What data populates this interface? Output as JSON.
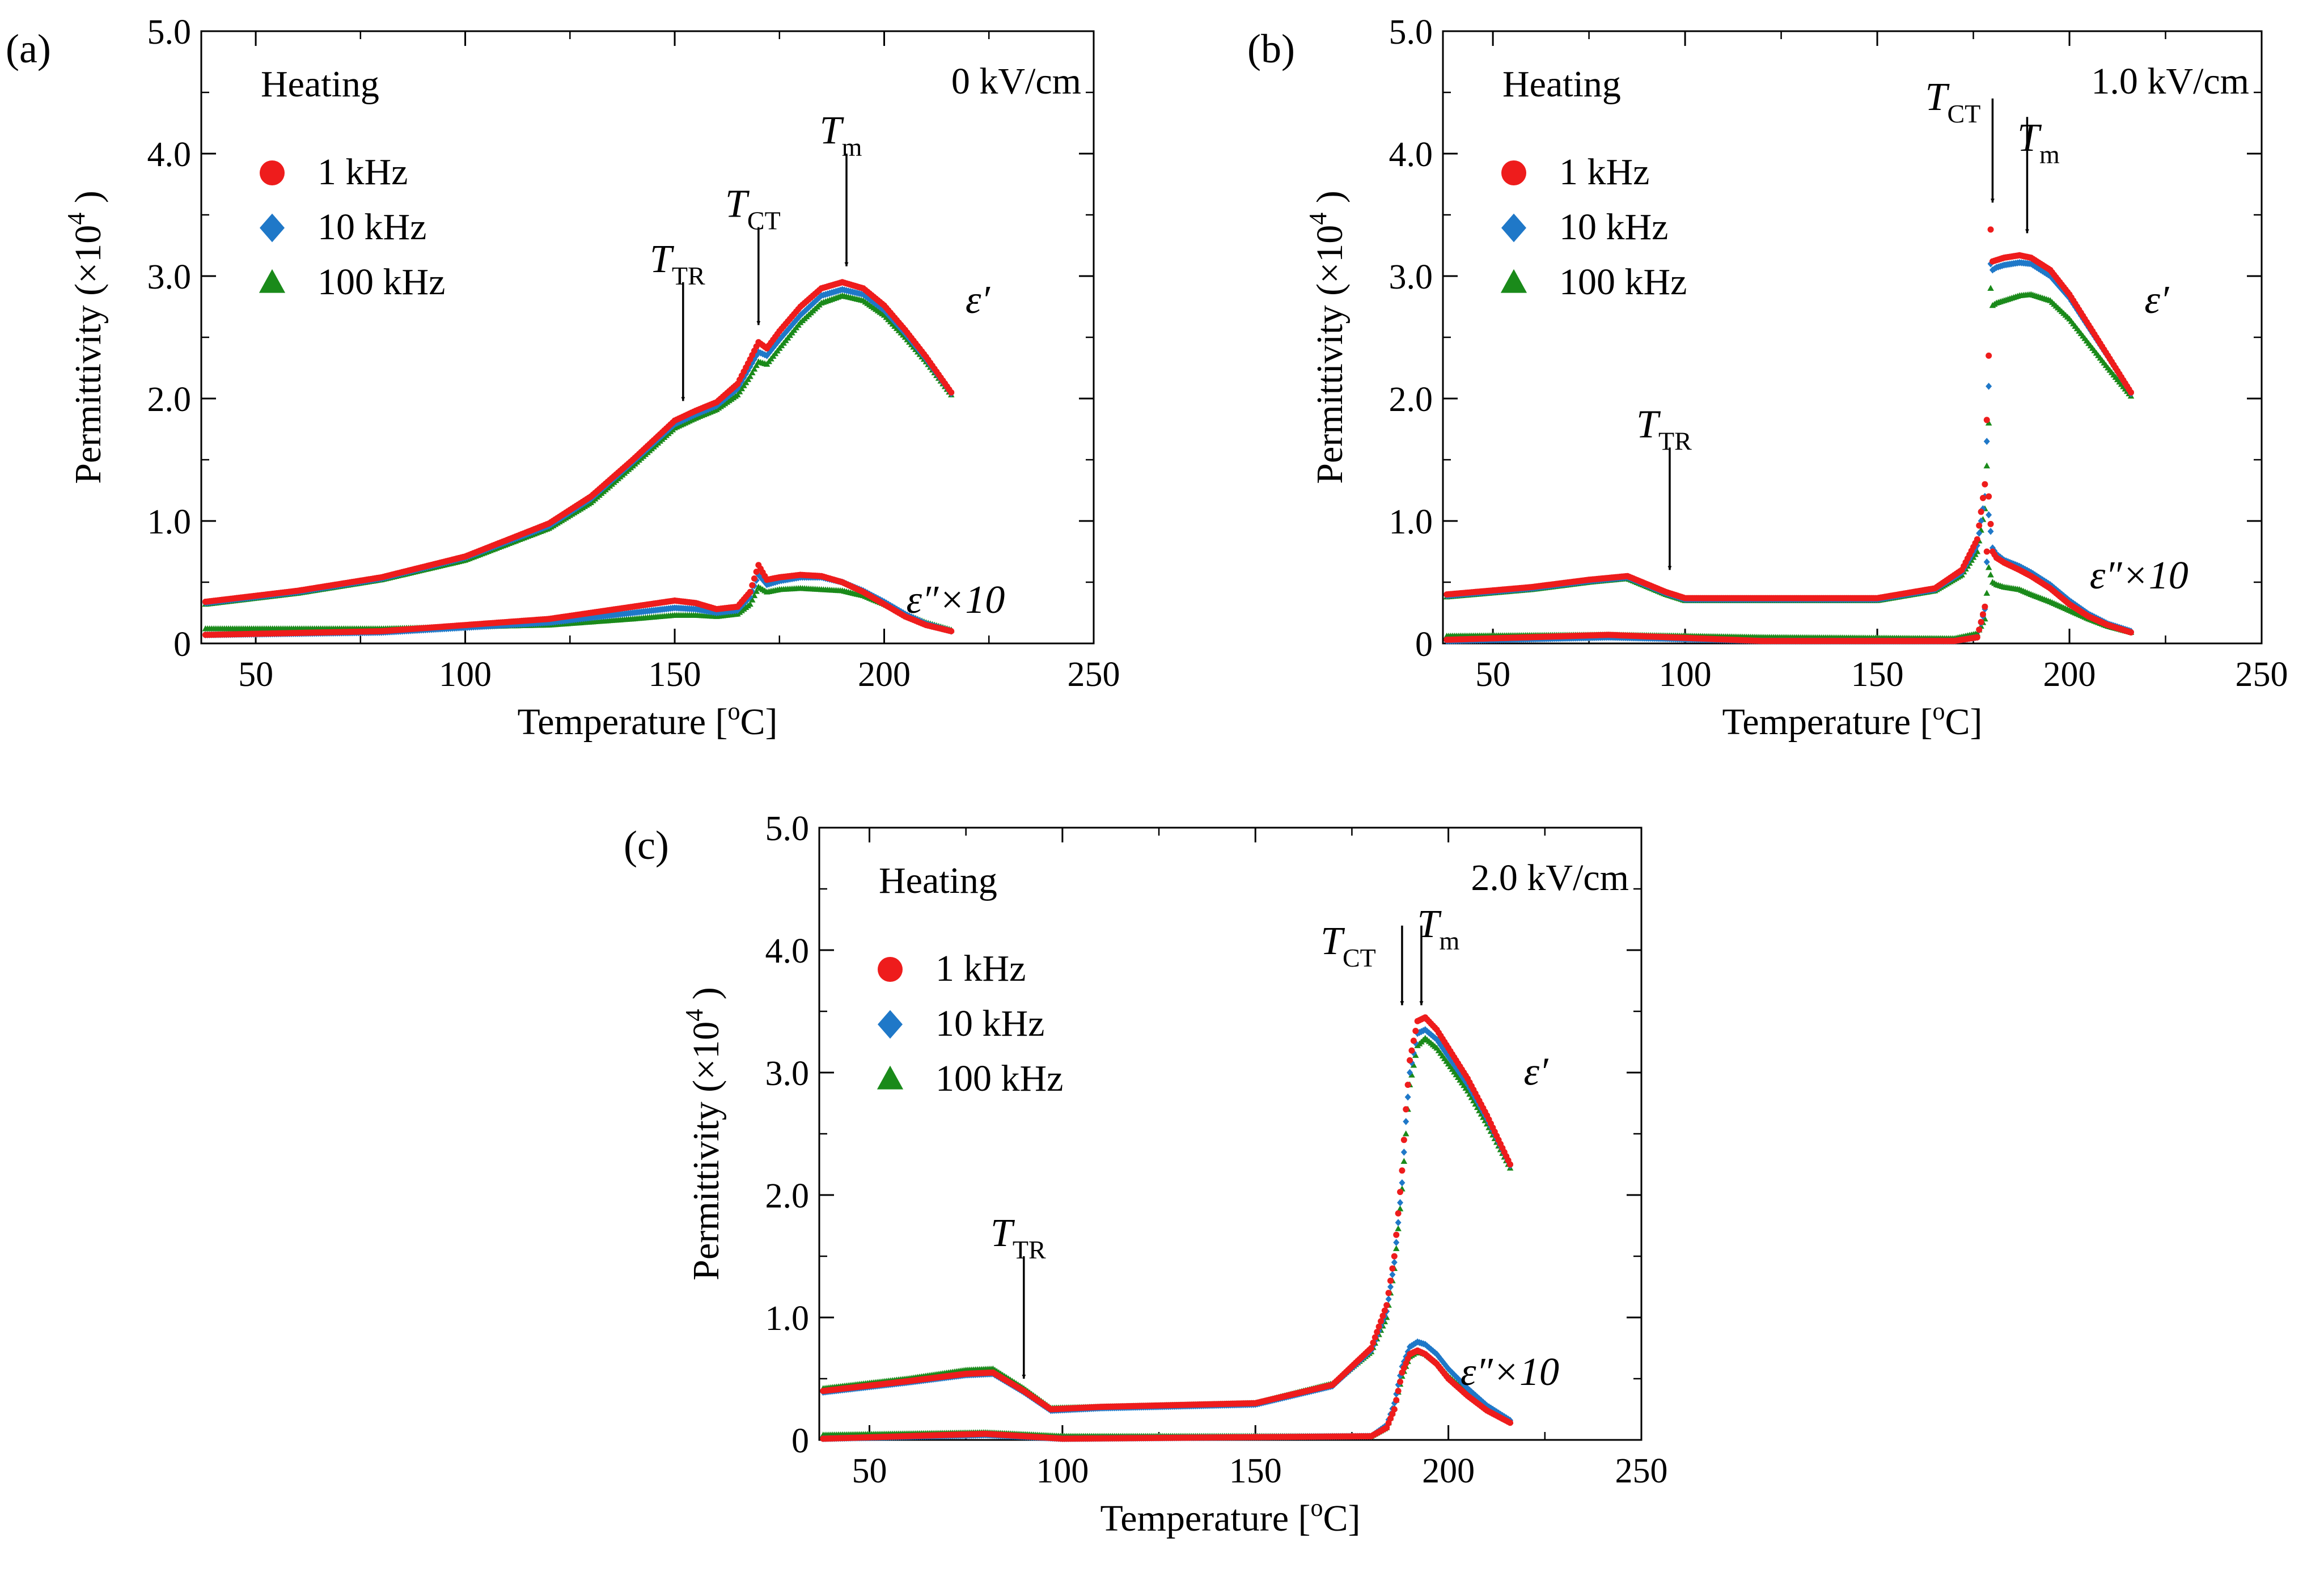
{
  "figure": {
    "axis_label_x_main": "Temperature [",
    "axis_label_x_unit_sup": "o",
    "axis_label_x_unit": "C]",
    "axis_label_y_main": "Permittivity (×10",
    "axis_label_y_sup": "4",
    "axis_label_y_end": ")",
    "heating_label": "Heating",
    "eps_prime_label": "ε′",
    "eps_double_label": "ε″×10",
    "legend": [
      {
        "label": "1 kHz",
        "color": "#ee1c1c",
        "marker": "circle"
      },
      {
        "label": "10 kHz",
        "color": "#1f78c8",
        "marker": "diamond"
      },
      {
        "label": "100 kHz",
        "color": "#1a8a1a",
        "marker": "triangle"
      }
    ]
  },
  "chart_data": [
    {
      "type": "scatter",
      "panel_label": "(a)",
      "field": "0 kV/cm",
      "xlim": [
        37,
        250
      ],
      "ylim": [
        0,
        5.0
      ],
      "x_ticks": [
        "50",
        "100",
        "150",
        "200",
        "250"
      ],
      "y_ticks": [
        "0",
        "1.0",
        "2.0",
        "3.0",
        "4.0",
        "5.0"
      ],
      "annotations": [
        {
          "sym": "T",
          "sub": "TR",
          "x": 152,
          "tip": 1.98,
          "tail": 2.95
        },
        {
          "sym": "T",
          "sub": "CT",
          "x": 170,
          "tip": 2.6,
          "tail": 3.4
        },
        {
          "sym": "T",
          "sub": "m",
          "x": 191,
          "tip": 3.08,
          "tail": 4.0
        }
      ],
      "real_keypoints": {
        "x": [
          38,
          60,
          80,
          100,
          120,
          130,
          140,
          150,
          155,
          160,
          165,
          168,
          170,
          172,
          175,
          180,
          185,
          190,
          195,
          200,
          205,
          210,
          216
        ],
        "series": [
          {
            "name": "1 kHz",
            "values": [
              0.34,
              0.43,
              0.54,
              0.71,
              0.98,
              1.2,
              1.5,
              1.82,
              1.9,
              1.97,
              2.12,
              2.32,
              2.46,
              2.41,
              2.55,
              2.75,
              2.9,
              2.95,
              2.9,
              2.76,
              2.56,
              2.34,
              2.05
            ]
          },
          {
            "name": "10 kHz",
            "values": [
              0.33,
              0.42,
              0.53,
              0.7,
              0.96,
              1.18,
              1.48,
              1.79,
              1.87,
              1.94,
              2.08,
              2.26,
              2.38,
              2.35,
              2.48,
              2.68,
              2.84,
              2.89,
              2.85,
              2.72,
              2.53,
              2.32,
              2.04
            ]
          },
          {
            "name": "100 kHz",
            "values": [
              0.32,
              0.41,
              0.52,
              0.68,
              0.94,
              1.15,
              1.45,
              1.76,
              1.84,
              1.91,
              2.03,
              2.18,
              2.3,
              2.28,
              2.41,
              2.62,
              2.78,
              2.84,
              2.8,
              2.68,
              2.5,
              2.3,
              2.03
            ]
          }
        ]
      },
      "imag_keypoints": {
        "x": [
          38,
          80,
          120,
          140,
          150,
          155,
          160,
          165,
          168,
          170,
          172,
          175,
          180,
          185,
          190,
          195,
          200,
          205,
          210,
          216
        ],
        "series": [
          {
            "name": "1 kHz",
            "values": [
              0.07,
              0.1,
              0.2,
              0.3,
              0.35,
              0.33,
              0.28,
              0.3,
              0.42,
              0.64,
              0.52,
              0.54,
              0.56,
              0.55,
              0.5,
              0.42,
              0.32,
              0.22,
              0.15,
              0.1
            ]
          },
          {
            "name": "10 kHz",
            "values": [
              0.07,
              0.09,
              0.17,
              0.25,
              0.29,
              0.28,
              0.25,
              0.27,
              0.38,
              0.56,
              0.48,
              0.51,
              0.54,
              0.54,
              0.5,
              0.43,
              0.34,
              0.24,
              0.16,
              0.1
            ]
          },
          {
            "name": "100 kHz",
            "values": [
              0.12,
              0.12,
              0.15,
              0.2,
              0.23,
              0.23,
              0.22,
              0.24,
              0.32,
              0.46,
              0.42,
              0.44,
              0.45,
              0.44,
              0.43,
              0.39,
              0.32,
              0.24,
              0.17,
              0.11
            ]
          }
        ]
      }
    },
    {
      "type": "scatter",
      "panel_label": "(b)",
      "field": "1.0 kV/cm",
      "xlim": [
        37,
        250
      ],
      "ylim": [
        0,
        5.0
      ],
      "x_ticks": [
        "50",
        "100",
        "150",
        "200",
        "250"
      ],
      "y_ticks": [
        "0",
        "1.0",
        "2.0",
        "3.0",
        "4.0",
        "5.0"
      ],
      "annotations": [
        {
          "sym": "T",
          "sub": "TR",
          "x": 96,
          "tip": 0.6,
          "tail": 1.6
        },
        {
          "sym": "T",
          "sub": "CT",
          "x": 180,
          "tip": 3.6,
          "tail": 4.45
        },
        {
          "sym": "T",
          "sub": "m",
          "x": 189,
          "tip": 3.35,
          "tail": 4.3
        }
      ],
      "real_keypoints": {
        "x": [
          38,
          60,
          75,
          85,
          95,
          100,
          150,
          165,
          172,
          176,
          178,
          179,
          179.5,
          180,
          181,
          183,
          187,
          190,
          195,
          200,
          205,
          210,
          216
        ],
        "series": [
          {
            "name": "1 kHz",
            "values": [
              0.4,
              0.46,
              0.52,
              0.55,
              0.42,
              0.37,
              0.37,
              0.45,
              0.6,
              0.85,
              1.3,
              2.35,
              3.38,
              3.12,
              3.13,
              3.15,
              3.17,
              3.15,
              3.05,
              2.85,
              2.6,
              2.35,
              2.05
            ]
          },
          {
            "name": "10 kHz",
            "values": [
              0.39,
              0.45,
              0.51,
              0.54,
              0.41,
              0.36,
              0.36,
              0.44,
              0.58,
              0.8,
              1.2,
              2.1,
              3.1,
              3.05,
              3.07,
              3.09,
              3.11,
              3.1,
              3.0,
              2.82,
              2.58,
              2.34,
              2.04
            ]
          },
          {
            "name": "100 kHz",
            "values": [
              0.38,
              0.44,
              0.5,
              0.53,
              0.4,
              0.35,
              0.35,
              0.43,
              0.56,
              0.75,
              1.1,
              1.8,
              2.9,
              2.76,
              2.78,
              2.8,
              2.84,
              2.85,
              2.8,
              2.65,
              2.45,
              2.25,
              2.02
            ]
          }
        ]
      },
      "imag_keypoints": {
        "x": [
          38,
          80,
          120,
          170,
          176,
          178,
          179,
          180,
          181,
          183,
          187,
          190,
          195,
          200,
          205,
          210,
          216
        ],
        "series": [
          {
            "name": "1 kHz",
            "values": [
              0.03,
              0.07,
              0.02,
              0.02,
              0.05,
              0.3,
              1.2,
              0.75,
              0.7,
              0.66,
              0.6,
              0.55,
              0.45,
              0.32,
              0.22,
              0.15,
              0.09
            ]
          },
          {
            "name": "10 kHz",
            "values": [
              0.02,
              0.05,
              0.02,
              0.02,
              0.05,
              0.28,
              1.05,
              0.78,
              0.73,
              0.68,
              0.63,
              0.58,
              0.48,
              0.35,
              0.24,
              0.16,
              0.1
            ]
          },
          {
            "name": "100 kHz",
            "values": [
              0.06,
              0.07,
              0.05,
              0.04,
              0.08,
              0.2,
              0.62,
              0.5,
              0.48,
              0.46,
              0.44,
              0.4,
              0.34,
              0.27,
              0.2,
              0.14,
              0.09
            ]
          }
        ]
      }
    },
    {
      "type": "scatter",
      "panel_label": "(c)",
      "field": "2.0 kV/cm",
      "xlim": [
        37,
        250
      ],
      "ylim": [
        0,
        5.0
      ],
      "x_ticks": [
        "50",
        "100",
        "150",
        "200",
        "250"
      ],
      "y_ticks": [
        "0",
        "1.0",
        "2.0",
        "3.0",
        "4.0",
        "5.0"
      ],
      "annotations": [
        {
          "sym": "T",
          "sub": "TR",
          "x": 90,
          "tip": 0.5,
          "tail": 1.5
        },
        {
          "sym": "T",
          "sub": "CT",
          "x": 188,
          "tip": 3.55,
          "tail": 4.2
        },
        {
          "sym": "T",
          "sub": "m",
          "x": 193,
          "tip": 3.55,
          "tail": 4.2
        }
      ],
      "real_keypoints": {
        "x": [
          38,
          60,
          75,
          82,
          90,
          97,
          110,
          150,
          170,
          180,
          184,
          186,
          188,
          189,
          190,
          192,
          194,
          197,
          200,
          205,
          210,
          216
        ],
        "series": [
          {
            "name": "1 kHz",
            "values": [
              0.4,
              0.48,
              0.54,
              0.55,
              0.4,
              0.25,
              0.27,
              0.3,
              0.45,
              0.75,
              1.1,
              1.5,
              2.2,
              2.7,
              3.1,
              3.42,
              3.45,
              3.35,
              3.2,
              2.95,
              2.65,
              2.25
            ]
          },
          {
            "name": "10 kHz",
            "values": [
              0.39,
              0.47,
              0.53,
              0.54,
              0.39,
              0.24,
              0.26,
              0.29,
              0.44,
              0.73,
              1.05,
              1.45,
              2.1,
              2.6,
              3.0,
              3.32,
              3.35,
              3.27,
              3.13,
              2.9,
              2.62,
              2.24
            ]
          },
          {
            "name": "100 kHz",
            "values": [
              0.42,
              0.5,
              0.57,
              0.58,
              0.42,
              0.26,
              0.27,
              0.3,
              0.46,
              0.72,
              1.0,
              1.4,
              2.05,
              2.5,
              2.9,
              3.22,
              3.28,
              3.2,
              3.07,
              2.85,
              2.58,
              2.22
            ]
          }
        ]
      },
      "imag_keypoints": {
        "x": [
          38,
          80,
          100,
          180,
          184,
          186,
          188,
          190,
          192,
          194,
          197,
          200,
          205,
          210,
          216
        ],
        "series": [
          {
            "name": "1 kHz",
            "values": [
              0.01,
              0.05,
              0.01,
              0.03,
              0.1,
              0.25,
              0.55,
              0.7,
              0.73,
              0.7,
              0.62,
              0.5,
              0.36,
              0.24,
              0.14
            ]
          },
          {
            "name": "10 kHz",
            "values": [
              0.01,
              0.04,
              0.01,
              0.03,
              0.12,
              0.3,
              0.6,
              0.76,
              0.8,
              0.78,
              0.7,
              0.58,
              0.42,
              0.28,
              0.16
            ]
          },
          {
            "name": "100 kHz",
            "values": [
              0.04,
              0.06,
              0.03,
              0.03,
              0.1,
              0.26,
              0.52,
              0.68,
              0.72,
              0.7,
              0.63,
              0.52,
              0.38,
              0.26,
              0.15
            ]
          }
        ]
      }
    }
  ]
}
